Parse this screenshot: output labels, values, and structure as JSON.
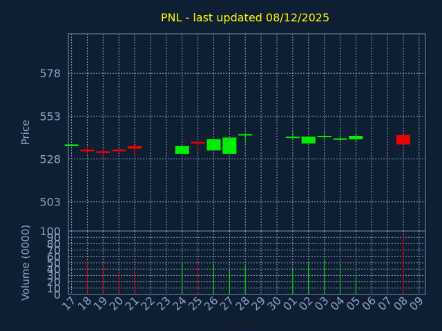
{
  "chart_data": {
    "type": "candlestick",
    "title": "PNL - last updated 08/12/2025",
    "xlabel": "Day",
    "price_ylabel": "Price",
    "volume_ylabel": "Volume (0000)",
    "x_ticks": [
      "17",
      "18",
      "19",
      "20",
      "21",
      "22",
      "23",
      "24",
      "25",
      "26",
      "27",
      "28",
      "29",
      "30",
      "01",
      "02",
      "03",
      "04",
      "05",
      "06",
      "07",
      "08",
      "09"
    ],
    "price_ylim": [
      486,
      601
    ],
    "price_ticks": [
      503,
      528,
      553,
      578
    ],
    "volume_ylim": [
      0,
      100
    ],
    "volume_ticks": [
      0,
      10,
      20,
      30,
      40,
      50,
      60,
      70,
      80,
      90,
      100
    ],
    "grid": true,
    "colors": {
      "background": "#0f1f33",
      "up": "#00ee00",
      "down": "#ee0000",
      "title": "#ffff00",
      "axis_text": "#8fa3c4",
      "grid": "#8fa3c4",
      "frame": "#7a8fb0"
    },
    "candles": [
      {
        "x": "17",
        "open": 535.5,
        "close": 536.5,
        "high": 536.5,
        "low": 535.5
      },
      {
        "x": "18",
        "open": 533.5,
        "close": 532.5,
        "high": 536.0,
        "low": 530.0
      },
      {
        "x": "19",
        "open": 532.5,
        "close": 531.5,
        "high": 534.0,
        "low": 529.0
      },
      {
        "x": "20",
        "open": 533.5,
        "close": 532.5,
        "high": 534.5,
        "low": 531.5
      },
      {
        "x": "21",
        "open": 535.5,
        "close": 534.0,
        "high": 536.0,
        "low": 529.0
      },
      {
        "x": "24",
        "open": 531.0,
        "close": 535.5,
        "high": 535.5,
        "low": 531.0
      },
      {
        "x": "25",
        "open": 538.0,
        "close": 537.0,
        "high": 538.5,
        "low": 533.0
      },
      {
        "x": "26",
        "open": 533.0,
        "close": 539.5,
        "high": 539.5,
        "low": 533.0
      },
      {
        "x": "27",
        "open": 531.0,
        "close": 540.5,
        "high": 540.5,
        "low": 531.0
      },
      {
        "x": "28",
        "open": 542.0,
        "close": 542.5,
        "high": 543.0,
        "low": 537.0
      },
      {
        "x": "01",
        "open": 540.5,
        "close": 541.0,
        "high": 543.5,
        "low": 539.0
      },
      {
        "x": "02",
        "open": 537.0,
        "close": 541.0,
        "high": 541.0,
        "low": 537.0
      },
      {
        "x": "03",
        "open": 541.0,
        "close": 541.5,
        "high": 543.5,
        "low": 539.0
      },
      {
        "x": "04",
        "open": 539.5,
        "close": 540.0,
        "high": 542.0,
        "low": 538.5
      },
      {
        "x": "05",
        "open": 539.5,
        "close": 541.5,
        "high": 543.0,
        "low": 537.5
      },
      {
        "x": "08",
        "open": 542.0,
        "close": 536.5,
        "high": 542.0,
        "low": 536.5
      }
    ],
    "volume": [
      {
        "x": "18",
        "value": 53,
        "dir": "down"
      },
      {
        "x": "19",
        "value": 50,
        "dir": "down"
      },
      {
        "x": "20",
        "value": 36,
        "dir": "down"
      },
      {
        "x": "21",
        "value": 39,
        "dir": "down"
      },
      {
        "x": "24",
        "value": 50,
        "dir": "up"
      },
      {
        "x": "25",
        "value": 50,
        "dir": "down"
      },
      {
        "x": "26",
        "value": 48,
        "dir": "up"
      },
      {
        "x": "27",
        "value": 39,
        "dir": "up"
      },
      {
        "x": "28",
        "value": 45,
        "dir": "up"
      },
      {
        "x": "01",
        "value": 41,
        "dir": "up"
      },
      {
        "x": "02",
        "value": 50,
        "dir": "up"
      },
      {
        "x": "03",
        "value": 54,
        "dir": "up"
      },
      {
        "x": "04",
        "value": 48,
        "dir": "up"
      },
      {
        "x": "05",
        "value": 28,
        "dir": "up"
      },
      {
        "x": "08",
        "value": 93,
        "dir": "down"
      }
    ]
  }
}
